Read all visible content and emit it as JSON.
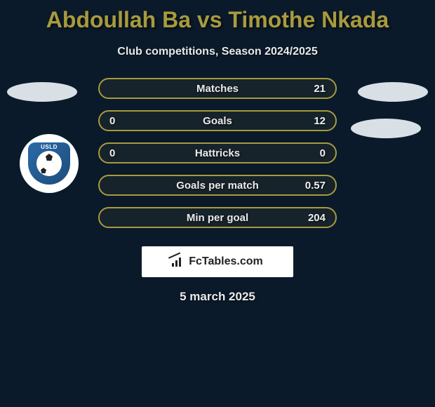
{
  "title": {
    "player1": "Abdoullah Ba",
    "vs": "vs",
    "player2": "Timothe Nkada",
    "color": "#a89a3e"
  },
  "subtitle": "Club competitions, Season 2024/2025",
  "badge": {
    "text": "USLD"
  },
  "stats": {
    "border_color": "#a89a3e",
    "rows": [
      {
        "left": "",
        "label": "Matches",
        "right": "21"
      },
      {
        "left": "0",
        "label": "Goals",
        "right": "12"
      },
      {
        "left": "0",
        "label": "Hattricks",
        "right": "0"
      },
      {
        "left": "",
        "label": "Goals per match",
        "right": "0.57"
      },
      {
        "left": "",
        "label": "Min per goal",
        "right": "204"
      }
    ]
  },
  "branding": "FcTables.com",
  "date": "5 march 2025",
  "colors": {
    "background": "#0a1a2a",
    "ellipse": "#d8e0e6",
    "text": "#eaeaea"
  }
}
